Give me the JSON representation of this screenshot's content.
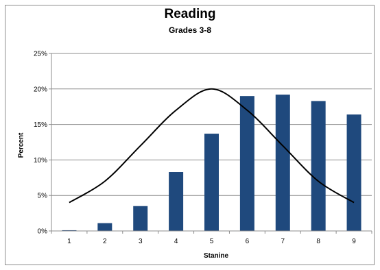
{
  "chart_data": {
    "type": "bar",
    "title": "Reading",
    "subtitle": "Grades 3-8",
    "xlabel": "Stanine",
    "ylabel": "Percent",
    "categories": [
      "1",
      "2",
      "3",
      "4",
      "5",
      "6",
      "7",
      "8",
      "9"
    ],
    "series": [
      {
        "type": "bar",
        "values": [
          0.1,
          1.1,
          3.5,
          8.3,
          13.7,
          19.0,
          19.2,
          18.3,
          16.4
        ],
        "color": "#1f497d"
      },
      {
        "type": "line",
        "values": [
          4,
          7,
          12,
          17,
          20,
          17,
          12,
          7,
          4
        ],
        "color": "#000000"
      }
    ],
    "ylim": [
      0,
      25
    ],
    "yticks": [
      0,
      5,
      10,
      15,
      20,
      25
    ],
    "ytick_labels": [
      "0%",
      "5%",
      "10%",
      "15%",
      "20%",
      "25%"
    ],
    "grid": true,
    "legend": "none"
  }
}
